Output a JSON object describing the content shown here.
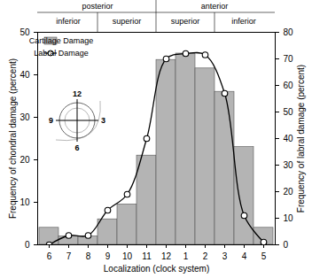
{
  "chart_data": {
    "type": "bar",
    "categories": [
      "6",
      "7",
      "8",
      "9",
      "10",
      "11",
      "12",
      "1",
      "2",
      "3",
      "4",
      "5"
    ],
    "series": [
      {
        "name": "Cartilage Damage",
        "type": "bar",
        "color": "#b4b4b4",
        "values": [
          4,
          2,
          2,
          6,
          9.5,
          21,
          43.5,
          45,
          41.5,
          36,
          23,
          4
        ]
      },
      {
        "name": "Labral Damage",
        "type": "line",
        "color": "#000000",
        "marker": "circle",
        "axis": "y2",
        "values": [
          0,
          3.5,
          3.5,
          13,
          19,
          40,
          70,
          72,
          71.5,
          57,
          11,
          1
        ]
      }
    ],
    "xlabel": "Localization (clock system)",
    "ylabel": "Frequency of chondral damage (percent)",
    "y2label": "Frequency of labral damage (percent)",
    "ylim": [
      0,
      50
    ],
    "yticks": [
      0,
      10,
      20,
      30,
      40,
      50
    ],
    "y2lim": [
      0,
      80
    ],
    "y2ticks": [
      0,
      10,
      20,
      30,
      40,
      50,
      60,
      70,
      80
    ],
    "legend": "upper left",
    "groups": [
      {
        "label": "posterior",
        "parts": [
          {
            "label": "inferior",
            "categories": [
              "6",
              "7",
              "8"
            ]
          },
          {
            "label": "superior",
            "categories": [
              "9",
              "10",
              "11"
            ]
          }
        ]
      },
      {
        "label": "anterior",
        "parts": [
          {
            "label": "superior",
            "categories": [
              "12",
              "1",
              "2"
            ]
          },
          {
            "label": "inferior",
            "categories": [
              "3",
              "4",
              "5"
            ]
          }
        ]
      }
    ],
    "inset_labels": [
      "12",
      "3",
      "6",
      "9"
    ]
  }
}
